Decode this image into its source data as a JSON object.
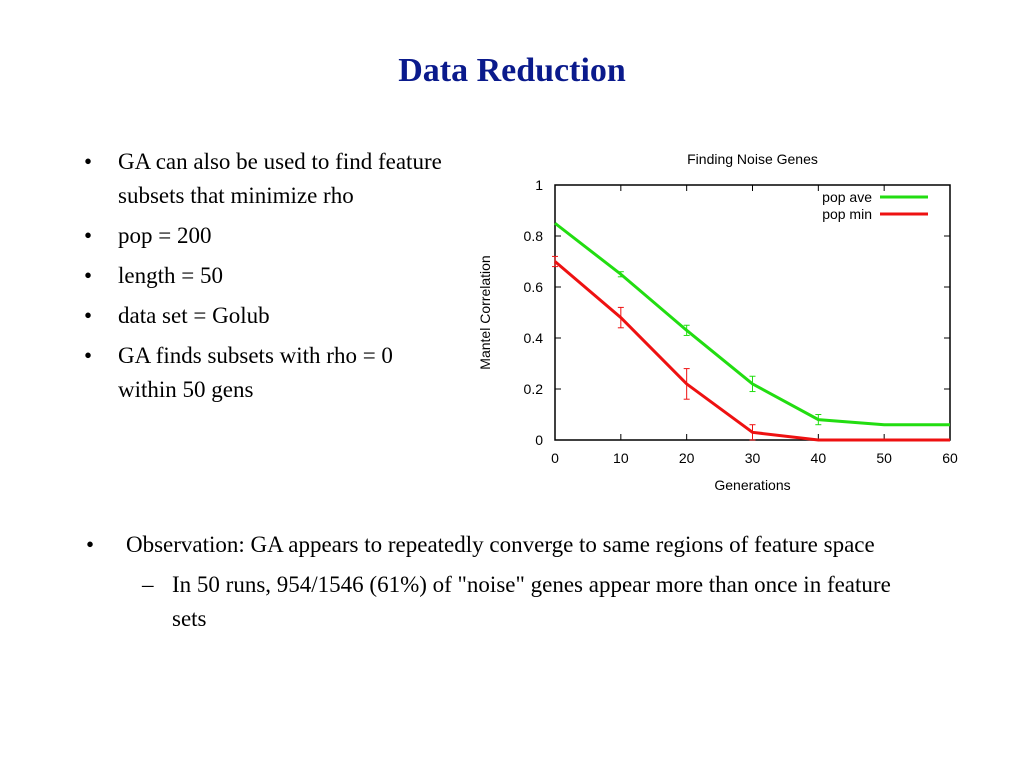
{
  "slide": {
    "title": "Data Reduction",
    "bullets": [
      "GA can also be used to find feature subsets that minimize rho",
      "pop = 200",
      "length = 50",
      "data set = Golub",
      "GA finds subsets with rho = 0 within 50 gens"
    ],
    "observation": {
      "main": "Observation: GA appears to repeatedly converge to same regions of feature space",
      "sub": "In 50 runs, 954/1546 (61%) of \"noise\" genes appear more than once in feature sets"
    },
    "bullet_symbol": "•",
    "dash_symbol": "–"
  },
  "chart_data": {
    "type": "line",
    "title": "Finding Noise Genes",
    "xlabel": "Generations",
    "ylabel": "Mantel Correlation",
    "x": [
      0,
      10,
      20,
      30,
      40,
      50,
      60
    ],
    "xlim": [
      0,
      60
    ],
    "ylim": [
      0,
      1
    ],
    "xticks": [
      0,
      10,
      20,
      30,
      40,
      50,
      60
    ],
    "yticks": [
      0,
      0.2,
      0.4,
      0.6,
      0.8,
      1
    ],
    "grid": false,
    "legend_position": "top-right",
    "series": [
      {
        "name": "pop ave",
        "color": "#22dd11",
        "values": [
          0.85,
          0.65,
          0.43,
          0.22,
          0.08,
          0.06,
          0.06
        ],
        "errors": [
          0,
          0.01,
          0.02,
          0.03,
          0.02,
          0,
          0
        ]
      },
      {
        "name": "pop min",
        "color": "#ee1111",
        "values": [
          0.7,
          0.48,
          0.22,
          0.03,
          0.0,
          0.0,
          0.0
        ],
        "errors": [
          0.02,
          0.04,
          0.06,
          0.03,
          0,
          0,
          0
        ]
      }
    ]
  }
}
